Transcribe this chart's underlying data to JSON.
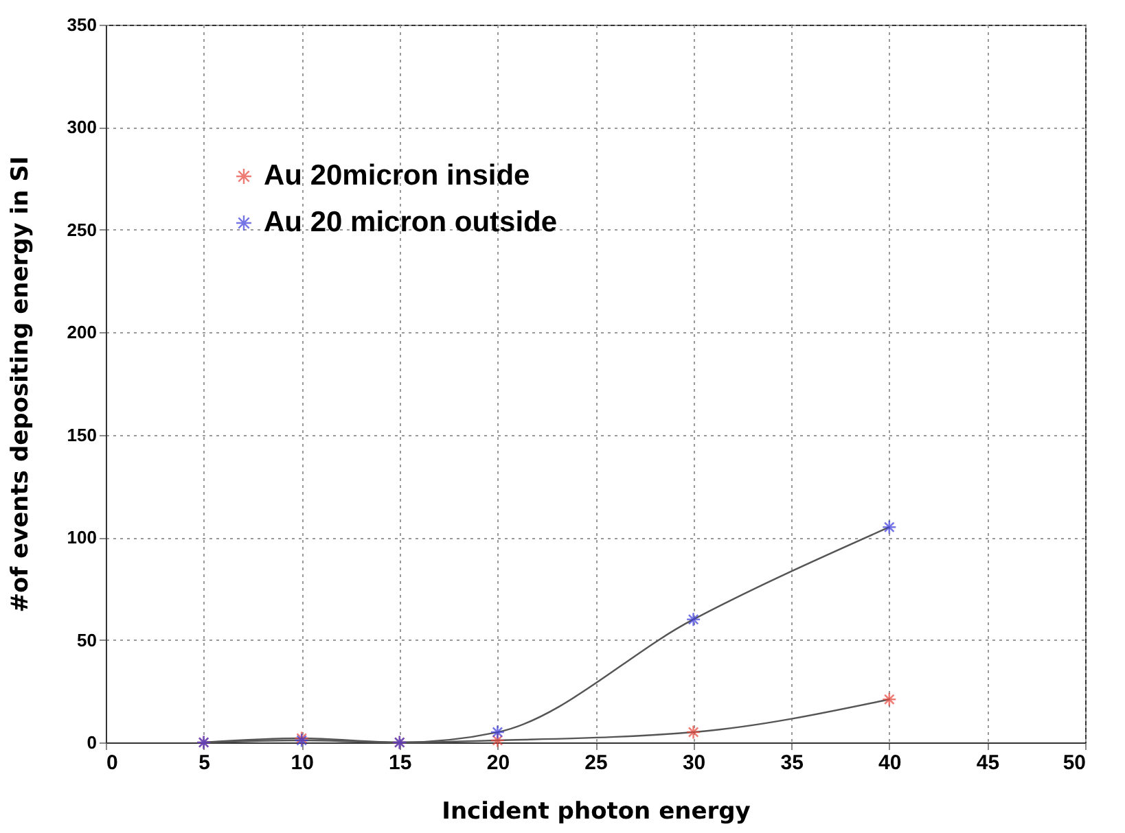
{
  "chart_data": {
    "type": "line",
    "xlabel": "Incident photon energy",
    "ylabel": "#of events depositing energy in SI",
    "x": [
      5,
      10,
      15,
      20,
      30,
      40
    ],
    "series": [
      {
        "name": "Au 20micron inside",
        "color": "#e8463c",
        "values": [
          0,
          2,
          0,
          1,
          5,
          21
        ]
      },
      {
        "name": "Au 20 micron outside",
        "color": "#3c3cdc",
        "values": [
          0,
          1,
          0,
          5,
          60,
          105
        ]
      }
    ],
    "xlim": [
      0,
      50
    ],
    "xticks": [
      0,
      5,
      10,
      15,
      20,
      25,
      30,
      35,
      40,
      45,
      50
    ],
    "ylim": [
      0,
      350
    ],
    "yticks": [
      0,
      50,
      100,
      150,
      200,
      250,
      300,
      350
    ],
    "grid": true,
    "legend": "top left",
    "marker": "cross",
    "line_style": "solid"
  }
}
